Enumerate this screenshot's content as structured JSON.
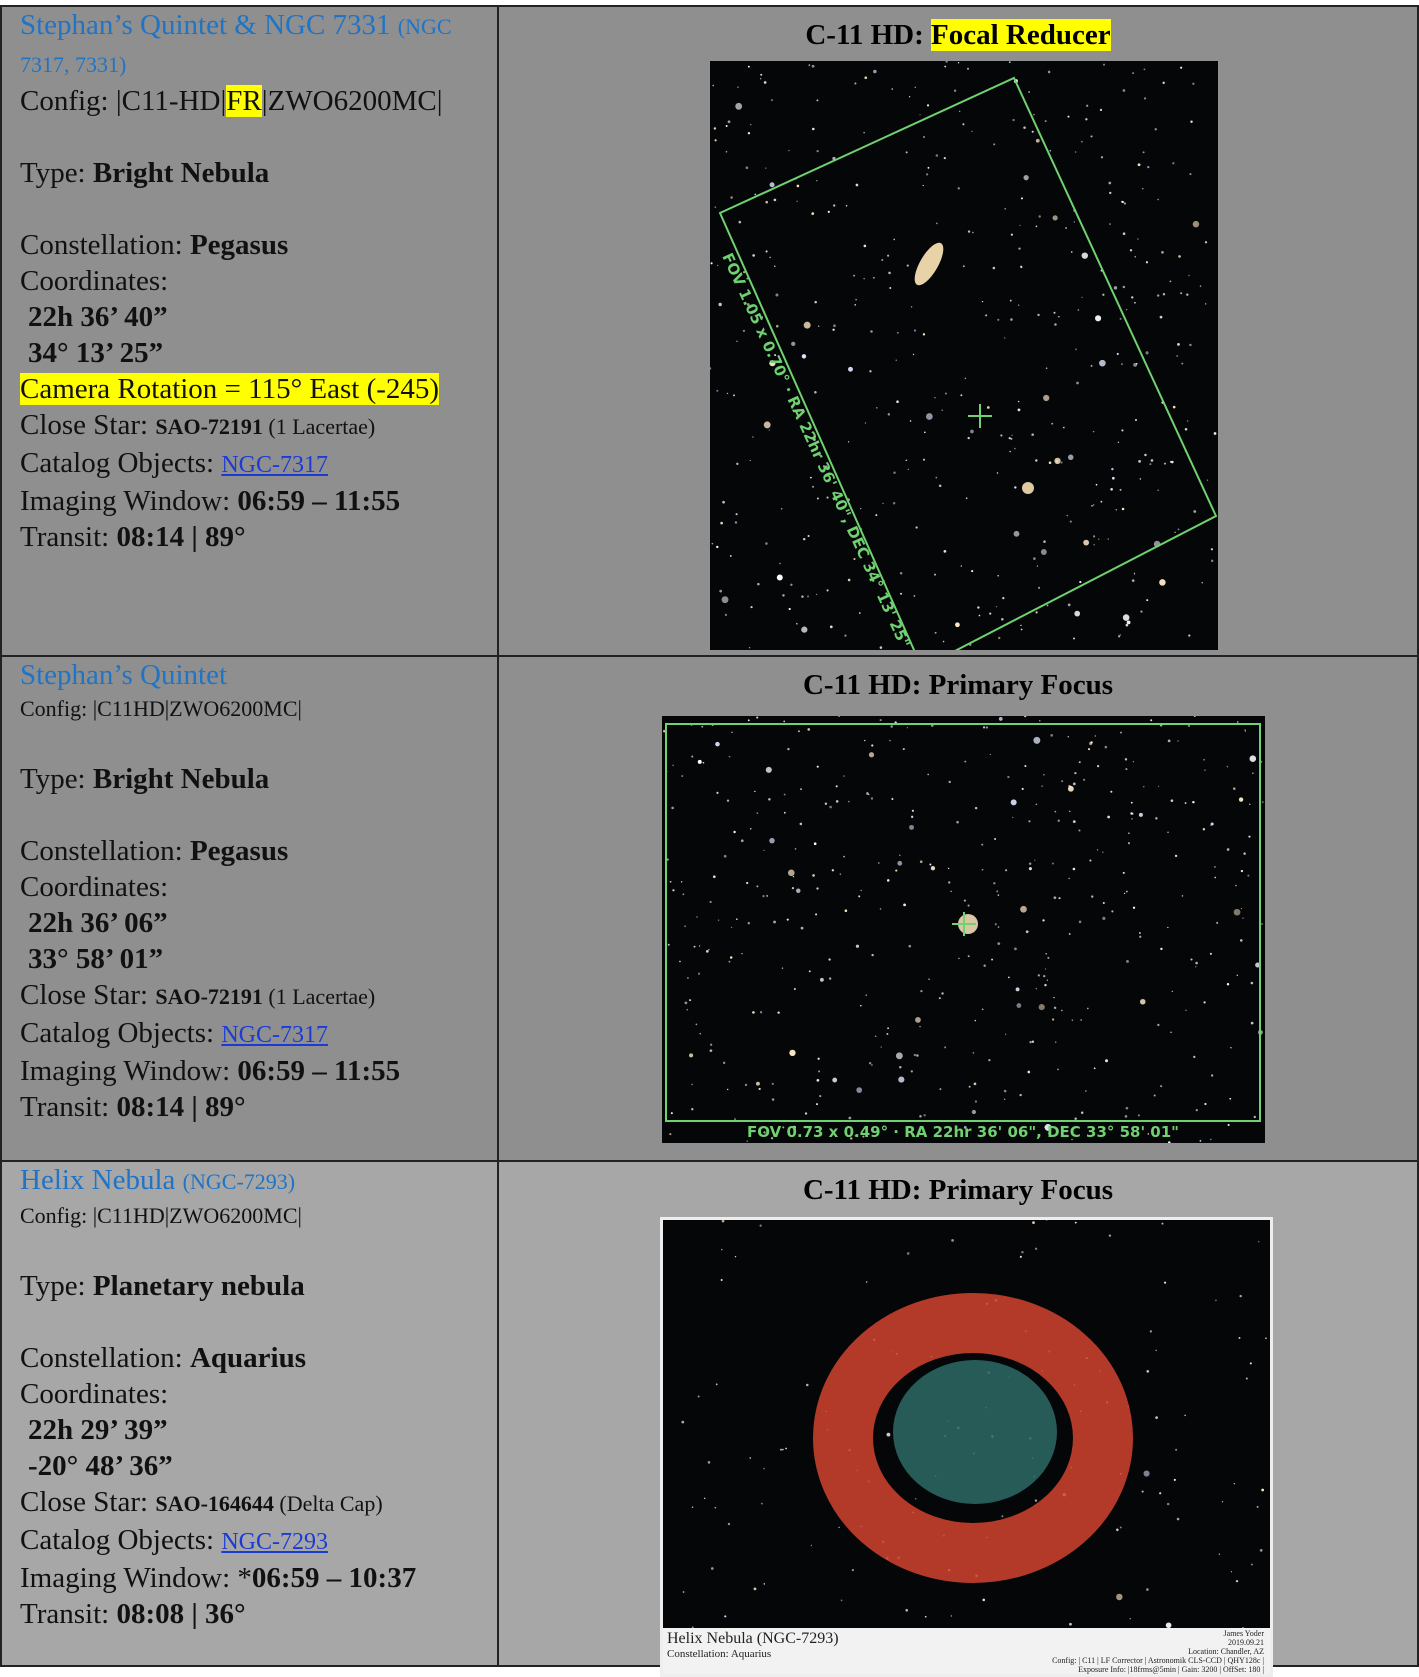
{
  "rows": [
    {
      "name": "Stephan’s Quintet & NGC 7331",
      "alt": "(NGC 7317, 7331)",
      "config": "Config: |C11-HD|",
      "config_highlight": "FR",
      "config_end": "|ZWO6200MC|",
      "type_label": "Type: ",
      "type": "Bright Nebula",
      "constellation_label": "Constellation:  ",
      "constellation": "Pegasus",
      "coords_label": "Coordinates:",
      "ra": "22h 36’ 40”",
      "dec": "34° 13’ 25”",
      "rotation": "Camera Rotation = 115° East (-245)",
      "star_label": "Close Star: ",
      "star": "SAO-72191",
      "star_note": " (1 Lacertae)",
      "catalog_label": "Catalog Objects: ",
      "catalog": "NGC-7317",
      "window_label": "Imaging Window: ",
      "window": "06:59 – 11:55",
      "transit_label": "Transit: ",
      "transit": "08:14 | 89°",
      "scope": "C-11 HD: ",
      "mode": "Focal Reducer",
      "fov": "FOV 1.05 x 0.70° · RA 22hr 36' 40\", DEC 34° 13' 25\""
    },
    {
      "name": "Stephan’s Quintet",
      "config": "Config: |C11HD|ZWO6200MC|",
      "type_label": "Type: ",
      "type": "Bright Nebula",
      "constellation_label": "Constellation:  ",
      "constellation": "Pegasus",
      "coords_label": "Coordinates:",
      "ra": "22h 36’ 06”",
      "dec": "33° 58’ 01”",
      "star_label": "Close Star: ",
      "star": "SAO-72191",
      "star_note": " (1 Lacertae)",
      "catalog_label": "Catalog Objects: ",
      "catalog": "NGC-7317",
      "window_label": "Imaging Window: ",
      "window": "06:59 – 11:55",
      "transit_label": "Transit: ",
      "transit": "08:14 | 89°",
      "scope": "C-11 HD: Primary Focus",
      "fov": "FOV 0.73 x 0.49° · RA 22hr 36' 06\", DEC 33° 58' 01\""
    },
    {
      "name": "Helix Nebula",
      "alt": "(NGC-7293)",
      "config": "Config: |C11HD|ZWO6200MC|",
      "type_label": "Type: ",
      "type": "Planetary nebula",
      "constellation_label": "Constellation:  ",
      "constellation": "Aquarius",
      "coords_label": "Coordinates:",
      "ra": "22h 29’ 39”",
      "dec": "-20° 48’ 36”",
      "star_label": "Close Star: ",
      "star": "SAO-164644",
      "star_note": " (Delta Cap)",
      "catalog_label": "Catalog Objects: ",
      "catalog": "NGC-7293",
      "window_label": "Imaging Window: ",
      "window_prefix": "*",
      "window": "06:59 – 10:37",
      "transit_label": "Transit: ",
      "transit": "08:08 | 36°",
      "scope": "C-11 HD: Primary Focus",
      "caption": [
        "Helix Nebula (NGC-7293)",
        "Constellation: Aquarius"
      ],
      "caption_right": [
        "James Yoder",
        "2019.09.21",
        "Location: Chandler, AZ",
        "Config: | C11 | LF Corrector | Astronomik CLS-CCD | QHY128c |",
        "Exposure Info: |18frms@5min | Gain: 3200 | OffSet: 180 |"
      ]
    }
  ]
}
